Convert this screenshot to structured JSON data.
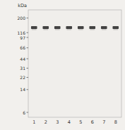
{
  "chart_data": {
    "type": "blot",
    "ylabel": "kDa",
    "categories": [
      "1",
      "2",
      "3",
      "4",
      "5",
      "6",
      "7",
      "8"
    ],
    "values": [
      140,
      140,
      140,
      140,
      140,
      140,
      140,
      140
    ],
    "color": "#2a2a2a",
    "log": "y",
    "ylim": [
      5,
      270
    ],
    "yticks": [
      200,
      116,
      97,
      66,
      44,
      31,
      22,
      14,
      6
    ]
  }
}
